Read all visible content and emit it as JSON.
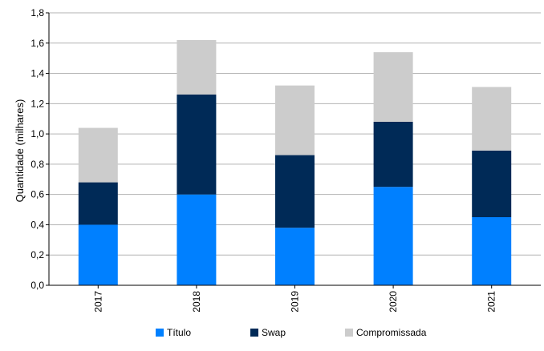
{
  "chart_data": {
    "type": "bar",
    "stacked": true,
    "title": "",
    "xlabel": "",
    "ylabel": "Quantidade (milhares)",
    "categories": [
      "2017",
      "2018",
      "2019",
      "2020",
      "2021"
    ],
    "series": [
      {
        "name": "Título",
        "color": "#0080ff",
        "values": [
          0.4,
          0.6,
          0.38,
          0.65,
          0.45
        ]
      },
      {
        "name": "Swap",
        "color": "#002a57",
        "values": [
          0.28,
          0.66,
          0.48,
          0.43,
          0.44
        ]
      },
      {
        "name": "Compromissada",
        "color": "#cccccc",
        "values": [
          0.36,
          0.36,
          0.46,
          0.46,
          0.42
        ]
      }
    ],
    "ylim": [
      0,
      1.8
    ],
    "yticks": [
      "0,0",
      "0,2",
      "0,4",
      "0,6",
      "0,8",
      "1,0",
      "1,2",
      "1,4",
      "1,6",
      "1,8"
    ],
    "grid": true,
    "legend_position": "bottom"
  }
}
